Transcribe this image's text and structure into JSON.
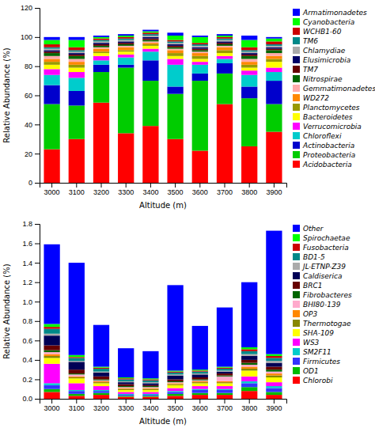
{
  "chart_data": [
    {
      "type": "bar",
      "stacked": true,
      "grid": false,
      "legend": "right",
      "xlabel": "Altitude (m)",
      "ylabel": "Relative Abundance (%)",
      "categories": [
        3000,
        3100,
        3200,
        3300,
        3400,
        3500,
        3600,
        3700,
        3800,
        3900
      ],
      "ylim": [
        0,
        120
      ],
      "yticks": [
        0,
        20,
        40,
        60,
        80,
        100,
        120
      ],
      "series": [
        {
          "name": "Acidobacteria",
          "color": "#FF0000",
          "values": [
            23,
            30,
            55,
            34,
            39,
            30,
            22,
            54,
            25,
            35
          ]
        },
        {
          "name": "Proteobacteria",
          "color": "#00CC00",
          "values": [
            31,
            23,
            21,
            45,
            31,
            31,
            48,
            21,
            33,
            19
          ]
        },
        {
          "name": "Actinobacteria",
          "color": "#0000CC",
          "values": [
            13,
            10,
            5,
            2,
            14,
            5,
            5,
            7,
            8,
            16
          ]
        },
        {
          "name": "Chloroflexi",
          "color": "#00CCCC",
          "values": [
            7,
            9,
            3,
            5,
            6,
            15,
            6,
            3,
            8,
            6
          ]
        },
        {
          "name": "Verrucomicrobia",
          "color": "#FF00FF",
          "values": [
            4,
            4,
            3,
            2,
            2,
            4,
            2,
            2,
            3,
            3
          ]
        },
        {
          "name": "Bacteroidetes",
          "color": "#FFFF00",
          "values": [
            3,
            3,
            2,
            2,
            2,
            2,
            2,
            2,
            2,
            4
          ]
        },
        {
          "name": "Planctomycetes",
          "color": "#999900",
          "values": [
            2,
            2,
            1,
            1,
            1,
            2,
            2,
            2,
            2,
            2
          ]
        },
        {
          "name": "WD272",
          "color": "#FF8800",
          "values": [
            2,
            2,
            2,
            2,
            1,
            2,
            2,
            2,
            2,
            2
          ]
        },
        {
          "name": "Gemmatimonadetes",
          "color": "#FFAAAA",
          "values": [
            2,
            2,
            1,
            1,
            1,
            1,
            1,
            1,
            2,
            2
          ]
        },
        {
          "name": "Nitrospirae",
          "color": "#006600",
          "values": [
            2,
            2,
            1,
            1,
            1,
            1,
            1,
            1,
            2,
            2
          ]
        },
        {
          "name": "TM7",
          "color": "#660000",
          "values": [
            1,
            1,
            1,
            1,
            1,
            1,
            1,
            1,
            1,
            1
          ]
        },
        {
          "name": "Elusimicrobia",
          "color": "#000066",
          "values": [
            1,
            1,
            1,
            1,
            1,
            1,
            1,
            1,
            1,
            1
          ]
        },
        {
          "name": "Chlamydiae",
          "color": "#AAAAAA",
          "values": [
            1,
            1,
            1,
            1,
            1,
            1,
            1,
            1,
            1,
            1
          ]
        },
        {
          "name": "TM6",
          "color": "#008888",
          "values": [
            1,
            1,
            1,
            1,
            1,
            1,
            1,
            1,
            1,
            1
          ]
        },
        {
          "name": "WCHB1-60",
          "color": "#CC0000",
          "values": [
            2,
            2,
            1,
            1,
            1,
            1,
            1,
            1,
            2,
            2
          ]
        },
        {
          "name": "Cyanobacteria",
          "color": "#00FF00",
          "values": [
            3,
            5,
            1,
            1,
            1,
            3,
            4,
            1,
            5,
            2
          ]
        },
        {
          "name": "Armatimonadetes",
          "color": "#0000FF",
          "values": [
            2,
            2,
            1,
            1,
            1,
            2,
            1,
            1,
            3,
            1
          ]
        }
      ]
    },
    {
      "type": "bar",
      "stacked": true,
      "grid": false,
      "legend": "right",
      "xlabel": "Altitude (m)",
      "ylabel": "Relative Abundance (%)",
      "categories": [
        3000,
        3100,
        3200,
        3300,
        3400,
        3500,
        3600,
        3700,
        3800,
        3900
      ],
      "ylim": [
        0,
        1.8
      ],
      "yticks": [
        {
          "value": 0,
          "label": "0.0"
        },
        0.2,
        0.4,
        0.6,
        0.8,
        {
          "value": 1,
          "label": "1.0"
        },
        1.2,
        1.4,
        1.6,
        1.8
      ],
      "series": [
        {
          "name": "Chlorobi",
          "color": "#FF0000",
          "values": [
            0.07,
            0.03,
            0.04,
            0.02,
            0.02,
            0.03,
            0.04,
            0.04,
            0.08,
            0.04
          ]
        },
        {
          "name": "OD1",
          "color": "#00BB00",
          "values": [
            0.03,
            0.02,
            0.02,
            0.01,
            0.01,
            0.02,
            0.02,
            0.02,
            0.04,
            0.03
          ]
        },
        {
          "name": "Firmicutes",
          "color": "#3333FF",
          "values": [
            0.04,
            0.03,
            0.02,
            0.01,
            0.01,
            0.02,
            0.03,
            0.03,
            0.04,
            0.04
          ]
        },
        {
          "name": "SM2F11",
          "color": "#00CCCC",
          "values": [
            0.02,
            0.01,
            0.01,
            0.01,
            0.01,
            0.01,
            0.01,
            0.01,
            0.02,
            0.02
          ]
        },
        {
          "name": "WS3",
          "color": "#FF00FF",
          "values": [
            0.2,
            0.07,
            0.04,
            0.02,
            0.02,
            0.03,
            0.03,
            0.03,
            0.05,
            0.04
          ]
        },
        {
          "name": "SHA-109",
          "color": "#FFFF00",
          "values": [
            0.06,
            0.05,
            0.03,
            0.02,
            0.02,
            0.03,
            0.03,
            0.03,
            0.06,
            0.05
          ]
        },
        {
          "name": "Thermotogae",
          "color": "#888800",
          "values": [
            0.02,
            0.01,
            0.01,
            0.01,
            0.01,
            0.01,
            0.01,
            0.01,
            0.02,
            0.02
          ]
        },
        {
          "name": "OP3",
          "color": "#FF8800",
          "values": [
            0.02,
            0.01,
            0.01,
            0.01,
            0.01,
            0.01,
            0.01,
            0.01,
            0.02,
            0.02
          ]
        },
        {
          "name": "BHI80-139",
          "color": "#FFAACC",
          "values": [
            0.02,
            0.02,
            0.01,
            0.01,
            0.01,
            0.01,
            0.01,
            0.05,
            0.02,
            0.02
          ]
        },
        {
          "name": "Fibrobacteres",
          "color": "#006600",
          "values": [
            0.02,
            0.01,
            0.01,
            0.01,
            0.01,
            0.01,
            0.01,
            0.01,
            0.02,
            0.02
          ]
        },
        {
          "name": "BRC1",
          "color": "#660000",
          "values": [
            0.05,
            0.04,
            0.03,
            0.02,
            0.01,
            0.02,
            0.02,
            0.02,
            0.03,
            0.03
          ]
        },
        {
          "name": "Caldiserica",
          "color": "#000055",
          "values": [
            0.1,
            0.08,
            0.04,
            0.02,
            0.02,
            0.04,
            0.03,
            0.02,
            0.04,
            0.04
          ]
        },
        {
          "name": "JL-ETNP-Z39",
          "color": "#AAAAAA",
          "values": [
            0.02,
            0.01,
            0.01,
            0.01,
            0.01,
            0.01,
            0.01,
            0.01,
            0.02,
            0.02
          ]
        },
        {
          "name": "BD1-5",
          "color": "#008888",
          "values": [
            0.05,
            0.03,
            0.03,
            0.02,
            0.02,
            0.02,
            0.02,
            0.02,
            0.03,
            0.03
          ]
        },
        {
          "name": "Fusobacteria",
          "color": "#CC0000",
          "values": [
            0.02,
            0.01,
            0.01,
            0.01,
            0.01,
            0.01,
            0.01,
            0.01,
            0.02,
            0.02
          ]
        },
        {
          "name": "Spirochaetae",
          "color": "#00FF00",
          "values": [
            0.03,
            0.02,
            0.01,
            0.01,
            0.01,
            0.01,
            0.01,
            0.01,
            0.02,
            0.02
          ]
        },
        {
          "name": "Other",
          "color": "#0000FF",
          "values": [
            0.82,
            0.95,
            0.43,
            0.3,
            0.28,
            0.88,
            0.45,
            0.61,
            0.67,
            1.27
          ]
        }
      ]
    }
  ]
}
